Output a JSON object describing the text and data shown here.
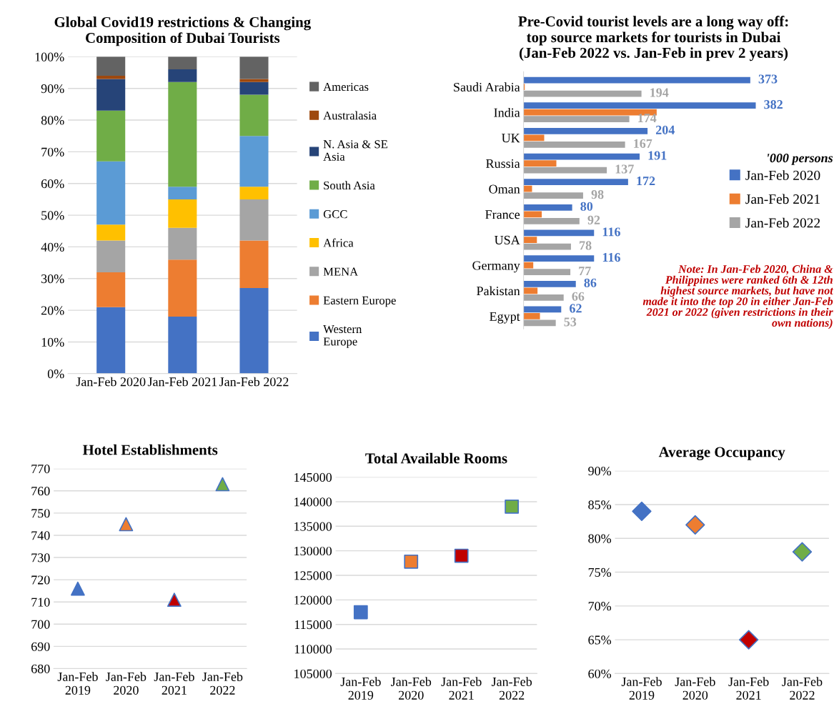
{
  "chart_data": [
    {
      "type": "bar",
      "stacked": true,
      "title": "Global Covid19 restrictions & Changing\nComposition of Dubai Tourists",
      "categories": [
        "Jan-Feb 2020",
        "Jan-Feb 2021",
        "Jan-Feb 2022"
      ],
      "ylim": [
        0,
        100
      ],
      "yticks": [
        {
          "value": 0,
          "label": "0%"
        },
        {
          "value": 10,
          "label": "10%"
        },
        {
          "value": 20,
          "label": "20%"
        },
        {
          "value": 30,
          "label": "30%"
        },
        {
          "value": 40,
          "label": "40%"
        },
        {
          "value": 50,
          "label": "50%"
        },
        {
          "value": 60,
          "label": "60%"
        },
        {
          "value": 70,
          "label": "70%"
        },
        {
          "value": 80,
          "label": "80%"
        },
        {
          "value": 90,
          "label": "90%"
        },
        {
          "value": 100,
          "label": "100%"
        }
      ],
      "grid": "y",
      "legend": "right",
      "series": [
        {
          "name": "Western\nEurope",
          "color": "#4472c4",
          "values": [
            21,
            18,
            27
          ]
        },
        {
          "name": "Eastern Europe",
          "color": "#ed7d31",
          "values": [
            11,
            18,
            15
          ]
        },
        {
          "name": "MENA",
          "color": "#a5a5a5",
          "values": [
            10,
            10,
            13
          ]
        },
        {
          "name": "Africa",
          "color": "#ffc000",
          "values": [
            5,
            9,
            4
          ]
        },
        {
          "name": "GCC",
          "color": "#5b9bd5",
          "values": [
            20,
            4,
            16
          ]
        },
        {
          "name": "South Asia",
          "color": "#70ad47",
          "values": [
            16,
            33,
            13
          ]
        },
        {
          "name": "N. Asia & SE\nAsia",
          "color": "#264478",
          "values": [
            10,
            4,
            4
          ]
        },
        {
          "name": "Australasia",
          "color": "#9e480e",
          "values": [
            1,
            0,
            1
          ]
        },
        {
          "name": "Americas",
          "color": "#636363",
          "values": [
            6,
            4,
            7
          ]
        }
      ]
    },
    {
      "type": "bar",
      "orientation": "horizontal",
      "title": "Pre-Covid tourist levels are a long way off:\ntop source markets for tourists in Dubai\n(Jan-Feb 2022 vs. Jan-Feb in prev 2 years)",
      "categories": [
        "Saudi Arabia",
        "India",
        "UK",
        "Russia",
        "Oman",
        "France",
        "USA",
        "Germany",
        "Pakistan",
        "Egypt"
      ],
      "legend": "right",
      "tick_labels": "y",
      "annotations": [
        "'000 persons",
        "Note: In Jan-Feb 2020, China &\nPhilippines were ranked 6th & 12th\nhighest source markets, but have not\nmade it into the top 20 in either Jan-Feb\n2021 or 2022 (given restrictions in their\nown nations)"
      ],
      "series": [
        {
          "name": "Jan-Feb 2020",
          "color": "#4472c4",
          "values": [
            373,
            382,
            204,
            191,
            172,
            80,
            116,
            116,
            86,
            62
          ],
          "value_labels": [
            "373",
            "382",
            "204",
            "191",
            "172",
            "80",
            "116",
            "116",
            "86",
            "62"
          ]
        },
        {
          "name": "Jan-Feb 2021",
          "color": "#ed7d31",
          "values": [
            2,
            219,
            34,
            54,
            14,
            30,
            22,
            16,
            23,
            27
          ]
        },
        {
          "name": "Jan-Feb 2022",
          "color": "#a5a5a5",
          "values": [
            194,
            174,
            167,
            137,
            98,
            92,
            78,
            77,
            66,
            53
          ],
          "value_labels": [
            "194",
            "174",
            "167",
            "137",
            "98",
            "92",
            "78",
            "77",
            "66",
            "53"
          ]
        }
      ]
    },
    {
      "type": "scatter",
      "title": "Hotel Establishments",
      "categories": [
        "Jan-Feb\n2019",
        "Jan-Feb\n2020",
        "Jan-Feb\n2021",
        "Jan-Feb\n2022"
      ],
      "marker": "triangle",
      "grid": "y",
      "ylim": [
        680,
        770
      ],
      "yticks": [
        680,
        690,
        700,
        710,
        720,
        730,
        740,
        750,
        760,
        770
      ],
      "values": [
        716,
        745,
        711,
        763
      ],
      "colors": [
        "#4472c4",
        "#ed7d31",
        "#c00000",
        "#70ad47"
      ]
    },
    {
      "type": "scatter",
      "title": "Total Available Rooms",
      "categories": [
        "Jan-Feb\n2019",
        "Jan-Feb\n2020",
        "Jan-Feb\n2021",
        "Jan-Feb\n2022"
      ],
      "marker": "square",
      "grid": "y",
      "ylim": [
        105000,
        145000
      ],
      "yticks": [
        105000,
        110000,
        115000,
        120000,
        125000,
        130000,
        135000,
        140000,
        145000
      ],
      "values": [
        117500,
        127800,
        129000,
        139000
      ],
      "colors": [
        "#4472c4",
        "#ed7d31",
        "#c00000",
        "#70ad47"
      ]
    },
    {
      "type": "scatter",
      "title": "Average Occupancy",
      "categories": [
        "Jan-Feb\n2019",
        "Jan-Feb\n2020",
        "Jan-Feb\n2021",
        "Jan-Feb\n2022"
      ],
      "marker": "diamond",
      "grid": "y",
      "ylim": [
        60,
        90
      ],
      "yticks": [
        {
          "value": 60,
          "label": "60%"
        },
        {
          "value": 65,
          "label": "65%"
        },
        {
          "value": 70,
          "label": "70%"
        },
        {
          "value": 75,
          "label": "75%"
        },
        {
          "value": 80,
          "label": "80%"
        },
        {
          "value": 85,
          "label": "85%"
        },
        {
          "value": 90,
          "label": "90%"
        }
      ],
      "values": [
        84,
        82,
        65,
        78
      ],
      "colors": [
        "#4472c4",
        "#ed7d31",
        "#c00000",
        "#70ad47"
      ]
    }
  ]
}
